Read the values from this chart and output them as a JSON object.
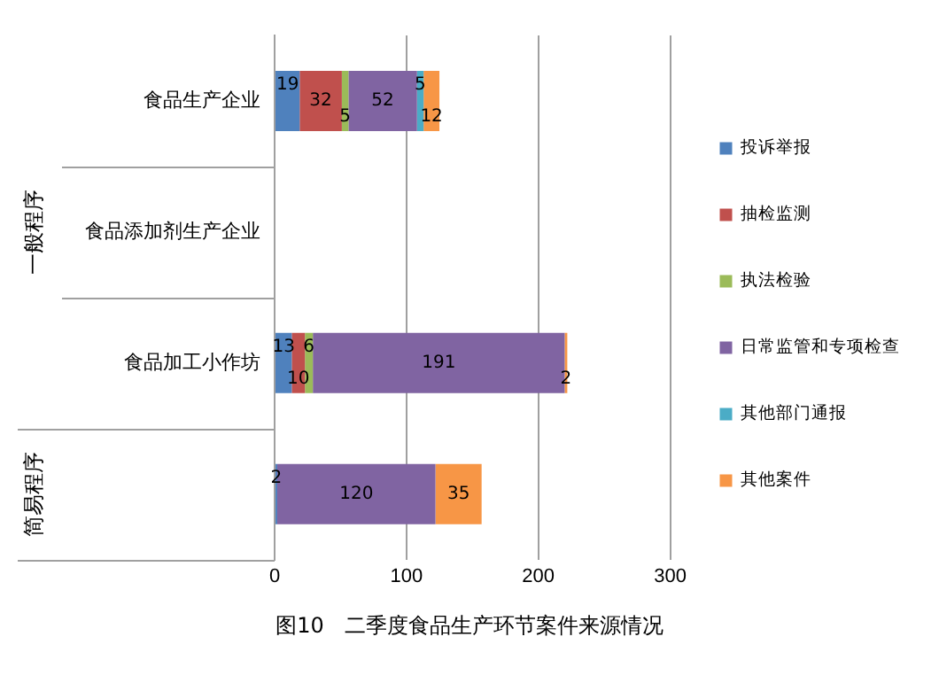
{
  "chart_data": {
    "type": "bar",
    "orientation": "horizontal",
    "stacked": true,
    "title": "图10   二季度食品生产环节案件来源情况",
    "categories": [
      "食品生产企业",
      "食品添加剂生产企业",
      "食品加工小作坊",
      null
    ],
    "series": [
      {
        "name": "投诉举报",
        "color": "#4f81bd",
        "values": [
          19,
          null,
          13,
          2
        ]
      },
      {
        "name": "抽检监测",
        "color": "#c0504d",
        "values": [
          32,
          null,
          10,
          null
        ]
      },
      {
        "name": "执法检验",
        "color": "#9bbb59",
        "values": [
          5,
          null,
          6,
          null
        ]
      },
      {
        "name": "日常监管和专项检查",
        "color": "#8064a2",
        "values": [
          52,
          null,
          191,
          120
        ]
      },
      {
        "name": "其他部门通报",
        "color": "#4bacc6",
        "values": [
          5,
          null,
          null,
          null
        ]
      },
      {
        "name": "其他案件",
        "color": "#f79646",
        "values": [
          12,
          null,
          2,
          35
        ]
      }
    ],
    "data_labels": true,
    "annotations": [
      "一般程序",
      "简易程序"
    ],
    "xlim": [
      0,
      300
    ],
    "xticks": [
      0,
      100,
      200,
      300
    ],
    "grid": "x",
    "legend": "right"
  }
}
